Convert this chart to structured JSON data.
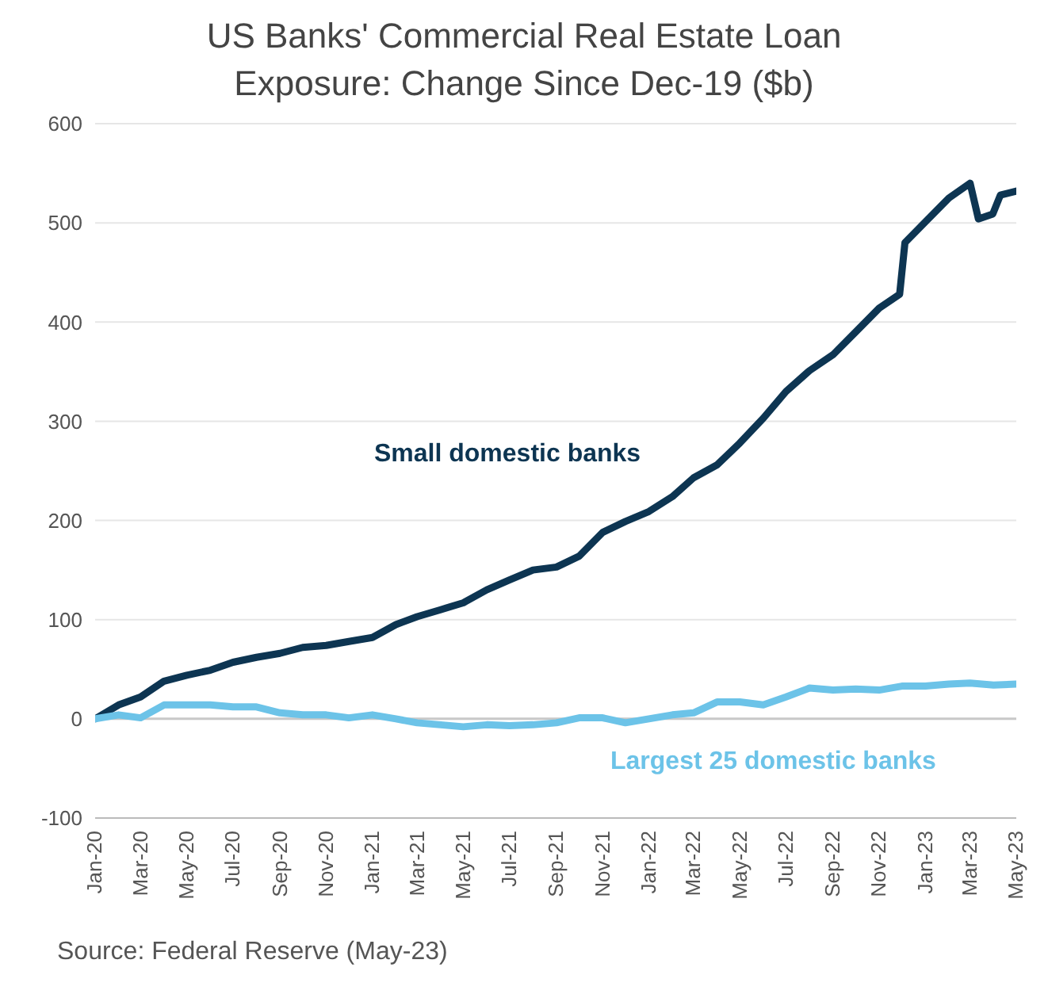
{
  "chart_data": {
    "type": "line",
    "title": "US Banks' Commercial Real Estate Loan Exposure: Change Since Dec-19 ($b)",
    "annotations": [
      "Source: Federal Reserve (May-23)"
    ],
    "series": [
      {
        "name": "Small domestic banks",
        "color": "#0d3552",
        "x": [
          "2020-01",
          "2020-02",
          "2020-03",
          "2020-04",
          "2020-05",
          "2020-06",
          "2020-07",
          "2020-08",
          "2020-09",
          "2020-10",
          "2020-11",
          "2020-12",
          "2021-01",
          "2021-02",
          "2021-03",
          "2021-04",
          "2021-05",
          "2021-06",
          "2021-07",
          "2021-08",
          "2021-09",
          "2021-10",
          "2021-11",
          "2021-12",
          "2022-01",
          "2022-02",
          "2022-03",
          "2022-04",
          "2022-05",
          "2022-06",
          "2022-07",
          "2022-08",
          "2022-09",
          "2022-10",
          "2022-11",
          "2022-11-28",
          "2022-12-05",
          "2023-01",
          "2023-02",
          "2023-03-01",
          "2023-03-12",
          "2023-03-31",
          "2023-04-10",
          "2023-05"
        ],
        "values": [
          0,
          14,
          22,
          38,
          44,
          49,
          57,
          62,
          66,
          72,
          74,
          78,
          82,
          95,
          103,
          110,
          117,
          130,
          140,
          150,
          153,
          164,
          188,
          199,
          209,
          224,
          243,
          256,
          278,
          303,
          330,
          351,
          367,
          390,
          414,
          428,
          480,
          501,
          525,
          540,
          504,
          509,
          528,
          532
        ]
      },
      {
        "name": "Largest 25 domestic banks",
        "color": "#6cc3e8",
        "x": [
          "2020-01",
          "2020-02",
          "2020-03",
          "2020-04",
          "2020-05",
          "2020-06",
          "2020-07",
          "2020-08",
          "2020-09",
          "2020-10",
          "2020-11",
          "2020-12",
          "2021-01",
          "2021-02",
          "2021-03",
          "2021-04",
          "2021-05",
          "2021-06",
          "2021-07",
          "2021-08",
          "2021-09",
          "2021-10",
          "2021-11",
          "2021-12",
          "2022-01",
          "2022-02",
          "2022-03",
          "2022-04",
          "2022-05",
          "2022-06",
          "2022-07",
          "2022-08",
          "2022-09",
          "2022-10",
          "2022-11",
          "2022-12",
          "2023-01",
          "2023-02",
          "2023-03",
          "2023-04",
          "2023-05"
        ],
        "values": [
          0,
          4,
          1,
          14,
          14,
          14,
          12,
          12,
          6,
          4,
          4,
          1,
          4,
          0,
          -4,
          -6,
          -8,
          -6,
          -7,
          -6,
          -4,
          1,
          1,
          -4,
          0,
          4,
          6,
          17,
          17,
          14,
          22,
          31,
          29,
          30,
          29,
          33,
          33,
          35,
          36,
          34,
          35
        ]
      }
    ],
    "xlim": [
      "2020-01",
      "2023-05"
    ],
    "xticks": [
      {
        "value": "2020-01",
        "label": "Jan-20"
      },
      {
        "value": "2020-03",
        "label": "Mar-20"
      },
      {
        "value": "2020-05",
        "label": "May-20"
      },
      {
        "value": "2020-07",
        "label": "Jul-20"
      },
      {
        "value": "2020-09",
        "label": "Sep-20"
      },
      {
        "value": "2020-11",
        "label": "Nov-20"
      },
      {
        "value": "2021-01",
        "label": "Jan-21"
      },
      {
        "value": "2021-03",
        "label": "Mar-21"
      },
      {
        "value": "2021-05",
        "label": "May-21"
      },
      {
        "value": "2021-07",
        "label": "Jul-21"
      },
      {
        "value": "2021-09",
        "label": "Sep-21"
      },
      {
        "value": "2021-11",
        "label": "Nov-21"
      },
      {
        "value": "2022-01",
        "label": "Jan-22"
      },
      {
        "value": "2022-03",
        "label": "Mar-22"
      },
      {
        "value": "2022-05",
        "label": "May-22"
      },
      {
        "value": "2022-07",
        "label": "Jul-22"
      },
      {
        "value": "2022-09",
        "label": "Sep-22"
      },
      {
        "value": "2022-11",
        "label": "Nov-22"
      },
      {
        "value": "2023-01",
        "label": "Jan-23"
      },
      {
        "value": "2023-03",
        "label": "Mar-23"
      },
      {
        "value": "2023-05",
        "label": "May-23"
      }
    ],
    "ylim": [
      -100,
      600
    ],
    "yticks": [
      -100,
      0,
      100,
      200,
      300,
      400,
      500,
      600
    ],
    "grid": "y",
    "marker": "none",
    "line_style": "solid"
  }
}
